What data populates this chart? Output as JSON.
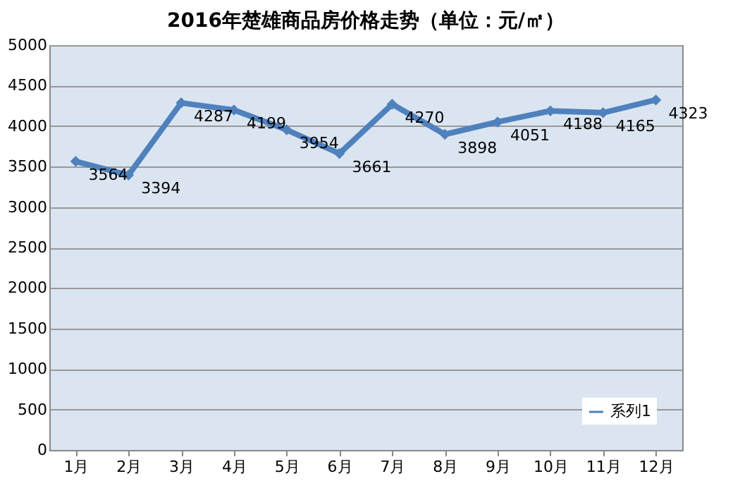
{
  "chart_data": {
    "type": "line",
    "title": "2016年楚雄商品房价格走势（单位：元/㎡）",
    "categories": [
      "1月",
      "2月",
      "3月",
      "4月",
      "5月",
      "6月",
      "7月",
      "8月",
      "9月",
      "10月",
      "11月",
      "12月"
    ],
    "series": [
      {
        "name": "系列1",
        "color": "#4f81bd",
        "values": [
          3564,
          3394,
          4287,
          4199,
          3954,
          3661,
          4270,
          3898,
          4051,
          4188,
          4165,
          4323
        ]
      }
    ],
    "ylim": [
      0,
      5000
    ],
    "yticks": [
      0,
      500,
      1000,
      1500,
      2000,
      2500,
      3000,
      3500,
      4000,
      4500,
      5000
    ],
    "grid": "y",
    "legend": "bottom right",
    "marker": "diamond",
    "line_style": "solid",
    "data_labels": true
  }
}
